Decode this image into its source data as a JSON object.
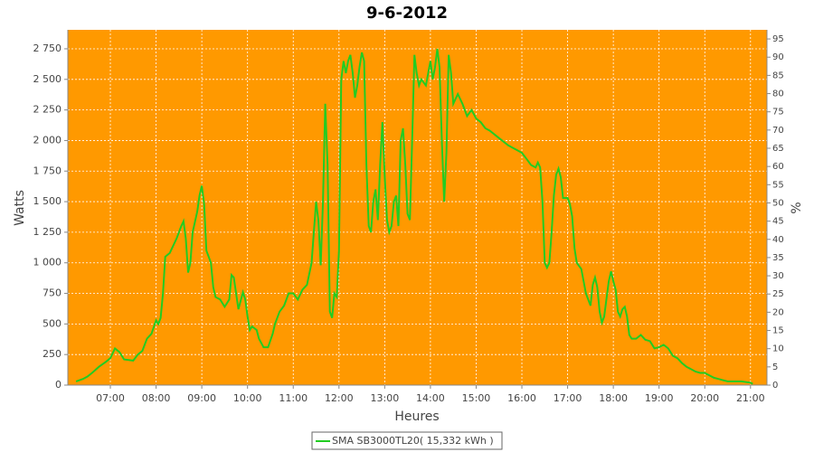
{
  "chart_data": {
    "type": "line",
    "title": "9-6-2012",
    "x_label": "Heures",
    "y_label": "Watts",
    "y2_label": "%",
    "xlim": [
      6.07,
      21.36
    ],
    "ylim": [
      0,
      2905
    ],
    "y2lim": [
      0,
      97.5
    ],
    "xticks": [
      {
        "value": 7,
        "label": "07:00"
      },
      {
        "value": 8,
        "label": "08:00"
      },
      {
        "value": 9,
        "label": "09:00"
      },
      {
        "value": 10,
        "label": "10:00"
      },
      {
        "value": 11,
        "label": "11:00"
      },
      {
        "value": 12,
        "label": "12:00"
      },
      {
        "value": 13,
        "label": "13:00"
      },
      {
        "value": 14,
        "label": "14:00"
      },
      {
        "value": 15,
        "label": "15:00"
      },
      {
        "value": 16,
        "label": "16:00"
      },
      {
        "value": 17,
        "label": "17:00"
      },
      {
        "value": 18,
        "label": "18:00"
      },
      {
        "value": 19,
        "label": "19:00"
      },
      {
        "value": 20,
        "label": "20:00"
      },
      {
        "value": 21,
        "label": "21:00"
      }
    ],
    "yticks": [
      0,
      250,
      500,
      750,
      {
        "value": 1000,
        "label": "1 000"
      },
      {
        "value": 1250,
        "label": "1 250"
      },
      {
        "value": 1500,
        "label": "1 500"
      },
      {
        "value": 1750,
        "label": "1 750"
      },
      {
        "value": 2000,
        "label": "2 000"
      },
      {
        "value": 2250,
        "label": "2 250"
      },
      {
        "value": 2500,
        "label": "2 500"
      },
      {
        "value": 2750,
        "label": "2 750"
      }
    ],
    "y2ticks": [
      0,
      5,
      10,
      15,
      20,
      25,
      30,
      35,
      40,
      45,
      50,
      55,
      60,
      65,
      70,
      75,
      80,
      85,
      90,
      95
    ],
    "grid": true,
    "x": [
      6.25,
      6.4,
      6.5,
      6.6,
      6.75,
      6.9,
      7.0,
      7.1,
      7.2,
      7.3,
      7.5,
      7.6,
      7.7,
      7.8,
      7.9,
      8.0,
      8.05,
      8.1,
      8.15,
      8.2,
      8.3,
      8.45,
      8.55,
      8.6,
      8.65,
      8.7,
      8.75,
      8.8,
      8.9,
      8.95,
      9.0,
      9.05,
      9.1,
      9.2,
      9.25,
      9.3,
      9.4,
      9.5,
      9.6,
      9.65,
      9.7,
      9.8,
      9.9,
      9.95,
      10.0,
      10.05,
      10.1,
      10.2,
      10.25,
      10.35,
      10.45,
      10.55,
      10.6,
      10.7,
      10.8,
      10.9,
      11.0,
      11.1,
      11.2,
      11.3,
      11.4,
      11.5,
      11.55,
      11.6,
      11.65,
      11.7,
      11.75,
      11.8,
      11.85,
      11.9,
      11.95,
      12.0,
      12.05,
      12.1,
      12.15,
      12.2,
      12.25,
      12.3,
      12.35,
      12.4,
      12.45,
      12.5,
      12.55,
      12.6,
      12.65,
      12.7,
      12.75,
      12.8,
      12.85,
      12.9,
      12.95,
      13.0,
      13.05,
      13.1,
      13.15,
      13.2,
      13.25,
      13.3,
      13.35,
      13.4,
      13.45,
      13.5,
      13.55,
      13.6,
      13.65,
      13.7,
      13.75,
      13.8,
      13.9,
      14.0,
      14.05,
      14.1,
      14.15,
      14.2,
      14.25,
      14.3,
      14.35,
      14.4,
      14.45,
      14.5,
      14.6,
      14.7,
      14.8,
      14.9,
      15.0,
      15.1,
      15.2,
      15.3,
      15.5,
      15.7,
      15.8,
      15.9,
      16.0,
      16.1,
      16.2,
      16.3,
      16.35,
      16.4,
      16.45,
      16.5,
      16.55,
      16.6,
      16.65,
      16.7,
      16.75,
      16.8,
      16.85,
      16.9,
      17.0,
      17.05,
      17.1,
      17.15,
      17.2,
      17.3,
      17.4,
      17.5,
      17.55,
      17.6,
      17.65,
      17.7,
      17.75,
      17.8,
      17.9,
      17.95,
      18.0,
      18.05,
      18.1,
      18.15,
      18.2,
      18.25,
      18.3,
      18.35,
      18.4,
      18.5,
      18.6,
      18.7,
      18.8,
      18.9,
      19.0,
      19.1,
      19.2,
      19.3,
      19.4,
      19.5,
      19.6,
      19.7,
      19.8,
      19.9,
      20.0,
      20.1,
      20.2,
      20.3,
      20.4,
      20.5,
      20.6,
      20.7,
      20.8,
      20.9,
      21.0,
      21.05
    ],
    "series": [
      {
        "name": "SMA SB3000TL20( 15,332 kWh )",
        "color": "#22cc22",
        "values": [
          30,
          50,
          70,
          100,
          150,
          190,
          220,
          300,
          270,
          210,
          200,
          250,
          280,
          380,
          420,
          530,
          500,
          550,
          750,
          1050,
          1080,
          1200,
          1300,
          1340,
          1200,
          920,
          1000,
          1250,
          1420,
          1550,
          1630,
          1480,
          1100,
          1000,
          800,
          720,
          700,
          640,
          700,
          900,
          880,
          620,
          760,
          700,
          560,
          450,
          480,
          450,
          380,
          310,
          310,
          420,
          500,
          600,
          650,
          750,
          750,
          700,
          780,
          820,
          1000,
          1500,
          1350,
          980,
          1500,
          2300,
          1800,
          600,
          550,
          750,
          720,
          1100,
          2500,
          2650,
          2550,
          2650,
          2700,
          2550,
          2350,
          2450,
          2600,
          2720,
          2650,
          1800,
          1300,
          1250,
          1500,
          1600,
          1350,
          1800,
          2150,
          1700,
          1350,
          1250,
          1300,
          1500,
          1550,
          1300,
          2000,
          2100,
          1800,
          1400,
          1350,
          2000,
          2700,
          2550,
          2450,
          2500,
          2450,
          2650,
          2500,
          2600,
          2750,
          2600,
          2000,
          1500,
          1900,
          2700,
          2550,
          2300,
          2380,
          2300,
          2200,
          2250,
          2180,
          2150,
          2100,
          2080,
          2020,
          1960,
          1940,
          1920,
          1900,
          1850,
          1800,
          1780,
          1820,
          1780,
          1500,
          1000,
          960,
          1000,
          1250,
          1550,
          1720,
          1770,
          1700,
          1530,
          1530,
          1480,
          1380,
          1120,
          1000,
          950,
          750,
          650,
          820,
          880,
          800,
          600,
          510,
          560,
          850,
          930,
          850,
          780,
          600,
          560,
          620,
          640,
          560,
          410,
          380,
          380,
          410,
          370,
          360,
          300,
          310,
          330,
          300,
          240,
          220,
          180,
          150,
          130,
          110,
          100,
          100,
          80,
          60,
          50,
          40,
          30,
          30,
          30,
          30,
          25,
          20,
          10
        ]
      }
    ]
  }
}
